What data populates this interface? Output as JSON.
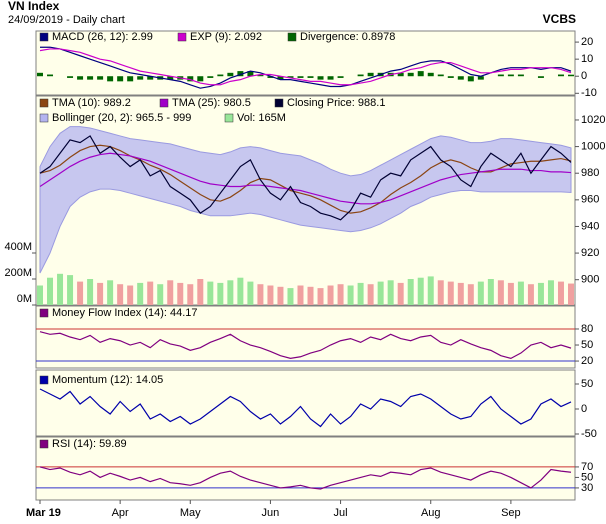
{
  "header": {
    "title": "VN Index",
    "subtitle": "24/09/2019 - Daily chart",
    "brand": "VCBS"
  },
  "chart_data": [
    {
      "type": "line",
      "ylim": [
        -11,
        26.5
      ],
      "yticks": [
        -10,
        0,
        10,
        20
      ],
      "series": [
        {
          "name": "MACD (26, 12): 2.99",
          "type": "line",
          "color": "#000080",
          "values": [
            17,
            17,
            16,
            14,
            12,
            10,
            8,
            6,
            4,
            2,
            1,
            0,
            -1,
            -2,
            -3,
            -5,
            -7,
            -6,
            -4,
            -1,
            1,
            3,
            2,
            0,
            -2,
            -2,
            -3,
            -4,
            -5,
            -6,
            -6,
            -5,
            -3,
            -1,
            1,
            3,
            4,
            6,
            8,
            9,
            9,
            7,
            4,
            1,
            0,
            2,
            4,
            5,
            5,
            5,
            4,
            5,
            5,
            2.99
          ]
        },
        {
          "name": "EXP (9): 2.092",
          "type": "line",
          "color": "#cc00cc",
          "values": [
            15,
            16,
            16,
            15,
            14,
            12,
            10,
            9,
            7,
            5,
            3,
            2,
            1,
            0,
            -1,
            -2,
            -4,
            -5,
            -5,
            -3,
            -2,
            0,
            1,
            1,
            0,
            -1,
            -2,
            -3,
            -3,
            -4,
            -5,
            -5,
            -4,
            -3,
            -1,
            1,
            2,
            4,
            5,
            7,
            8,
            8,
            6,
            4,
            2,
            2,
            3,
            4,
            4,
            5,
            5,
            5,
            4,
            2.092
          ]
        },
        {
          "name": "Divergence: 0.8978",
          "type": "bar",
          "color": "#006600",
          "values": [
            2,
            1,
            0,
            -1,
            -2,
            -2,
            -2,
            -3,
            -3,
            -3,
            -2,
            -2,
            -2,
            -2,
            -2,
            -3,
            -3,
            -1,
            1,
            2,
            3,
            3,
            1,
            -1,
            -2,
            -1,
            -1,
            -1,
            -2,
            -2,
            -1,
            0,
            1,
            2,
            2,
            2,
            2,
            2,
            3,
            2,
            1,
            -1,
            -2,
            -3,
            -2,
            0,
            1,
            1,
            1,
            0,
            -1,
            0,
            1,
            0.8978
          ]
        }
      ]
    },
    {
      "type": "line",
      "ylim": [
        881,
        1038
      ],
      "yticks": [
        900,
        920,
        940,
        960,
        980,
        1000,
        1020
      ],
      "y2lim": [
        0,
        1608
      ],
      "y2ticks": [
        {
          "value": 0,
          "label": "0M"
        },
        {
          "value": 200,
          "label": "200M"
        },
        {
          "value": 400,
          "label": "400M"
        }
      ],
      "series": [
        {
          "name": "TMA (10): 989.2",
          "type": "line",
          "color": "#8b4513",
          "values": [
            980,
            982,
            986,
            992,
            997,
            1000,
            1001,
            1000,
            997,
            993,
            990,
            986,
            983,
            979,
            974,
            969,
            964,
            960,
            959,
            962,
            967,
            973,
            976,
            975,
            971,
            967,
            965,
            963,
            960,
            956,
            952,
            950,
            951,
            954,
            958,
            964,
            969,
            973,
            978,
            984,
            988,
            990,
            988,
            984,
            981,
            981,
            984,
            987,
            988,
            989,
            989,
            990,
            991,
            989.2
          ]
        },
        {
          "name": "TMA (25): 980.5",
          "type": "line",
          "color": "#a000c8",
          "values": [
            970,
            975,
            980,
            985,
            989,
            992,
            994,
            995,
            994,
            993,
            991,
            989,
            986,
            983,
            980,
            977,
            974,
            972,
            971,
            970,
            970,
            971,
            971,
            970,
            969,
            968,
            967,
            965,
            963,
            961,
            959,
            958,
            957,
            957,
            958,
            960,
            963,
            966,
            969,
            972,
            975,
            977,
            979,
            980,
            981,
            982,
            983,
            983,
            983,
            982,
            982,
            981,
            981,
            980.5
          ]
        },
        {
          "name": "Closing Price: 988.1",
          "type": "line",
          "color": "#000033",
          "values": [
            980,
            985,
            995,
            1005,
            1003,
            1008,
            995,
            1000,
            992,
            985,
            990,
            978,
            982,
            970,
            965,
            960,
            950,
            955,
            965,
            975,
            985,
            990,
            975,
            965,
            960,
            970,
            958,
            955,
            950,
            948,
            945,
            952,
            965,
            962,
            975,
            980,
            978,
            990,
            995,
            1000,
            990,
            985,
            975,
            970,
            985,
            995,
            990,
            985,
            995,
            980,
            990,
            1000,
            995,
            988.1
          ]
        },
        {
          "name": "Bollinger (20, 2): 965.5 - 999",
          "type": "band",
          "color": "#b4b4f0",
          "upper": [
            985,
            1000,
            1010,
            1015,
            1015,
            1014,
            1012,
            1010,
            1008,
            1006,
            1005,
            1004,
            1003,
            1002,
            1000,
            998,
            996,
            995,
            994,
            996,
            999,
            1000,
            999,
            997,
            995,
            994,
            993,
            990,
            987,
            983,
            980,
            978,
            979,
            982,
            986,
            990,
            994,
            998,
            1002,
            1006,
            1008,
            1007,
            1005,
            1003,
            1003,
            1004,
            1006,
            1006,
            1005,
            1004,
            1003,
            1002,
            1001,
            999
          ],
          "lower": [
            905,
            920,
            940,
            955,
            962,
            966,
            968,
            968,
            967,
            965,
            963,
            961,
            959,
            957,
            955,
            952,
            950,
            948,
            948,
            948,
            949,
            950,
            949,
            947,
            945,
            943,
            941,
            940,
            939,
            938,
            937,
            936,
            937,
            939,
            942,
            946,
            950,
            955,
            958,
            962,
            964,
            966,
            967,
            967,
            966,
            966,
            966,
            966,
            966,
            966,
            966,
            966,
            966,
            965.5
          ]
        },
        {
          "name": "Vol: 165M",
          "type": "bar",
          "axis": "y2",
          "color": "#99e699",
          "down_color": "#f0a0a0",
          "values": [
            150,
            210,
            240,
            230,
            180,
            200,
            170,
            190,
            160,
            150,
            170,
            180,
            160,
            190,
            170,
            160,
            200,
            180,
            170,
            190,
            210,
            180,
            160,
            150,
            140,
            130,
            150,
            140,
            130,
            150,
            160,
            150,
            170,
            160,
            180,
            190,
            170,
            200,
            210,
            220,
            190,
            180,
            170,
            160,
            180,
            200,
            190,
            170,
            180,
            160,
            170,
            190,
            180,
            165
          ]
        }
      ]
    },
    {
      "type": "line",
      "ylim": [
        7,
        123
      ],
      "yticks": [
        20,
        50,
        80
      ],
      "reference_lines": [
        {
          "value": 80,
          "color": "#cc3333"
        },
        {
          "value": 20,
          "color": "#3333cc"
        }
      ],
      "series": [
        {
          "name": "Money Flow Index (14): 44.17",
          "type": "line",
          "color": "#800080",
          "values": [
            75,
            70,
            72,
            65,
            60,
            68,
            55,
            62,
            58,
            50,
            55,
            45,
            60,
            52,
            48,
            40,
            45,
            55,
            62,
            70,
            58,
            50,
            45,
            38,
            30,
            25,
            28,
            35,
            40,
            50,
            58,
            62,
            55,
            65,
            60,
            70,
            62,
            58,
            65,
            68,
            55,
            50,
            60,
            52,
            45,
            40,
            30,
            25,
            35,
            50,
            55,
            45,
            50,
            44.17
          ]
        }
      ]
    },
    {
      "type": "line",
      "ylim": [
        -54,
        78
      ],
      "yticks": [
        -50,
        0,
        50
      ],
      "series": [
        {
          "name": "Momentum (12): 14.05",
          "type": "line",
          "color": "#0000aa",
          "values": [
            40,
            30,
            20,
            35,
            10,
            25,
            5,
            -10,
            15,
            -5,
            10,
            -20,
            -10,
            -25,
            -15,
            -30,
            -20,
            -5,
            10,
            25,
            15,
            -5,
            -20,
            -10,
            -30,
            -15,
            5,
            -20,
            -35,
            -10,
            -30,
            -15,
            10,
            0,
            20,
            15,
            5,
            25,
            30,
            20,
            5,
            -10,
            -20,
            -15,
            10,
            25,
            0,
            -15,
            -30,
            -20,
            10,
            20,
            5,
            14.05
          ]
        }
      ]
    },
    {
      "type": "line",
      "ylim": [
        7,
        127
      ],
      "yticks": [
        30,
        50,
        70
      ],
      "reference_lines": [
        {
          "value": 70,
          "color": "#cc3333"
        },
        {
          "value": 30,
          "color": "#3333cc"
        }
      ],
      "categories": [
        "Mar 19",
        null,
        null,
        null,
        null,
        null,
        null,
        null,
        "Apr",
        null,
        null,
        null,
        null,
        null,
        null,
        "May",
        null,
        null,
        null,
        null,
        null,
        null,
        null,
        "Jun",
        null,
        null,
        null,
        null,
        null,
        null,
        "Jul",
        null,
        null,
        null,
        null,
        null,
        null,
        null,
        null,
        "Aug",
        null,
        null,
        null,
        null,
        null,
        null,
        null,
        "Sep",
        null,
        null,
        null,
        null,
        null,
        null
      ],
      "series": [
        {
          "name": "RSI (14): 59.89",
          "type": "line",
          "color": "#800080",
          "values": [
            70,
            65,
            68,
            60,
            55,
            62,
            50,
            58,
            52,
            45,
            50,
            42,
            48,
            40,
            38,
            35,
            40,
            50,
            58,
            62,
            52,
            45,
            40,
            35,
            30,
            32,
            35,
            30,
            28,
            35,
            40,
            45,
            50,
            55,
            52,
            60,
            58,
            55,
            65,
            68,
            60,
            55,
            50,
            45,
            55,
            62,
            58,
            50,
            40,
            30,
            45,
            65,
            62,
            59.89
          ]
        }
      ]
    }
  ]
}
